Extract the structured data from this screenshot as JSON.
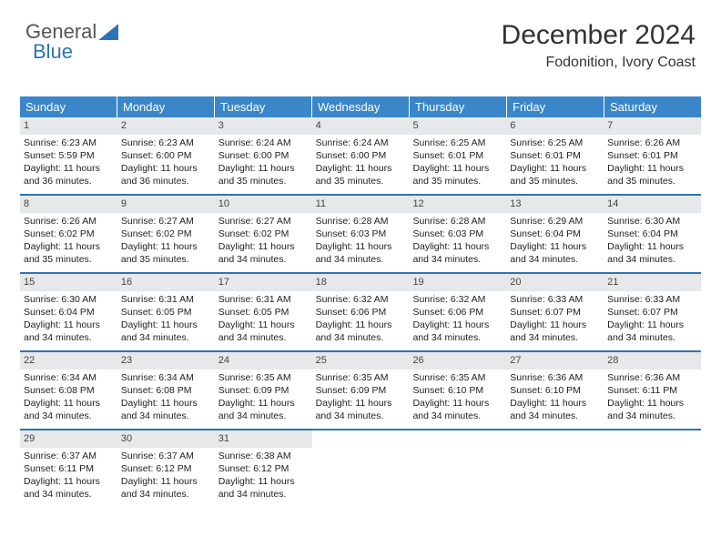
{
  "logo": {
    "word1": "General",
    "word2": "Blue"
  },
  "title": "December 2024",
  "location": "Fodonition, Ivory Coast",
  "colors": {
    "header_bg": "#3a86c8",
    "header_text": "#ffffff",
    "week_divider": "#2d74b5",
    "daynum_bg": "#e7e8e9",
    "body_text": "#222222",
    "title_text": "#333333",
    "logo_gray": "#555555",
    "logo_blue": "#2d74b5"
  },
  "day_names": [
    "Sunday",
    "Monday",
    "Tuesday",
    "Wednesday",
    "Thursday",
    "Friday",
    "Saturday"
  ],
  "weeks": [
    [
      {
        "n": "1",
        "sr": "Sunrise: 6:23 AM",
        "ss": "Sunset: 5:59 PM",
        "d1": "Daylight: 11 hours",
        "d2": "and 36 minutes."
      },
      {
        "n": "2",
        "sr": "Sunrise: 6:23 AM",
        "ss": "Sunset: 6:00 PM",
        "d1": "Daylight: 11 hours",
        "d2": "and 36 minutes."
      },
      {
        "n": "3",
        "sr": "Sunrise: 6:24 AM",
        "ss": "Sunset: 6:00 PM",
        "d1": "Daylight: 11 hours",
        "d2": "and 35 minutes."
      },
      {
        "n": "4",
        "sr": "Sunrise: 6:24 AM",
        "ss": "Sunset: 6:00 PM",
        "d1": "Daylight: 11 hours",
        "d2": "and 35 minutes."
      },
      {
        "n": "5",
        "sr": "Sunrise: 6:25 AM",
        "ss": "Sunset: 6:01 PM",
        "d1": "Daylight: 11 hours",
        "d2": "and 35 minutes."
      },
      {
        "n": "6",
        "sr": "Sunrise: 6:25 AM",
        "ss": "Sunset: 6:01 PM",
        "d1": "Daylight: 11 hours",
        "d2": "and 35 minutes."
      },
      {
        "n": "7",
        "sr": "Sunrise: 6:26 AM",
        "ss": "Sunset: 6:01 PM",
        "d1": "Daylight: 11 hours",
        "d2": "and 35 minutes."
      }
    ],
    [
      {
        "n": "8",
        "sr": "Sunrise: 6:26 AM",
        "ss": "Sunset: 6:02 PM",
        "d1": "Daylight: 11 hours",
        "d2": "and 35 minutes."
      },
      {
        "n": "9",
        "sr": "Sunrise: 6:27 AM",
        "ss": "Sunset: 6:02 PM",
        "d1": "Daylight: 11 hours",
        "d2": "and 35 minutes."
      },
      {
        "n": "10",
        "sr": "Sunrise: 6:27 AM",
        "ss": "Sunset: 6:02 PM",
        "d1": "Daylight: 11 hours",
        "d2": "and 34 minutes."
      },
      {
        "n": "11",
        "sr": "Sunrise: 6:28 AM",
        "ss": "Sunset: 6:03 PM",
        "d1": "Daylight: 11 hours",
        "d2": "and 34 minutes."
      },
      {
        "n": "12",
        "sr": "Sunrise: 6:28 AM",
        "ss": "Sunset: 6:03 PM",
        "d1": "Daylight: 11 hours",
        "d2": "and 34 minutes."
      },
      {
        "n": "13",
        "sr": "Sunrise: 6:29 AM",
        "ss": "Sunset: 6:04 PM",
        "d1": "Daylight: 11 hours",
        "d2": "and 34 minutes."
      },
      {
        "n": "14",
        "sr": "Sunrise: 6:30 AM",
        "ss": "Sunset: 6:04 PM",
        "d1": "Daylight: 11 hours",
        "d2": "and 34 minutes."
      }
    ],
    [
      {
        "n": "15",
        "sr": "Sunrise: 6:30 AM",
        "ss": "Sunset: 6:04 PM",
        "d1": "Daylight: 11 hours",
        "d2": "and 34 minutes."
      },
      {
        "n": "16",
        "sr": "Sunrise: 6:31 AM",
        "ss": "Sunset: 6:05 PM",
        "d1": "Daylight: 11 hours",
        "d2": "and 34 minutes."
      },
      {
        "n": "17",
        "sr": "Sunrise: 6:31 AM",
        "ss": "Sunset: 6:05 PM",
        "d1": "Daylight: 11 hours",
        "d2": "and 34 minutes."
      },
      {
        "n": "18",
        "sr": "Sunrise: 6:32 AM",
        "ss": "Sunset: 6:06 PM",
        "d1": "Daylight: 11 hours",
        "d2": "and 34 minutes."
      },
      {
        "n": "19",
        "sr": "Sunrise: 6:32 AM",
        "ss": "Sunset: 6:06 PM",
        "d1": "Daylight: 11 hours",
        "d2": "and 34 minutes."
      },
      {
        "n": "20",
        "sr": "Sunrise: 6:33 AM",
        "ss": "Sunset: 6:07 PM",
        "d1": "Daylight: 11 hours",
        "d2": "and 34 minutes."
      },
      {
        "n": "21",
        "sr": "Sunrise: 6:33 AM",
        "ss": "Sunset: 6:07 PM",
        "d1": "Daylight: 11 hours",
        "d2": "and 34 minutes."
      }
    ],
    [
      {
        "n": "22",
        "sr": "Sunrise: 6:34 AM",
        "ss": "Sunset: 6:08 PM",
        "d1": "Daylight: 11 hours",
        "d2": "and 34 minutes."
      },
      {
        "n": "23",
        "sr": "Sunrise: 6:34 AM",
        "ss": "Sunset: 6:08 PM",
        "d1": "Daylight: 11 hours",
        "d2": "and 34 minutes."
      },
      {
        "n": "24",
        "sr": "Sunrise: 6:35 AM",
        "ss": "Sunset: 6:09 PM",
        "d1": "Daylight: 11 hours",
        "d2": "and 34 minutes."
      },
      {
        "n": "25",
        "sr": "Sunrise: 6:35 AM",
        "ss": "Sunset: 6:09 PM",
        "d1": "Daylight: 11 hours",
        "d2": "and 34 minutes."
      },
      {
        "n": "26",
        "sr": "Sunrise: 6:35 AM",
        "ss": "Sunset: 6:10 PM",
        "d1": "Daylight: 11 hours",
        "d2": "and 34 minutes."
      },
      {
        "n": "27",
        "sr": "Sunrise: 6:36 AM",
        "ss": "Sunset: 6:10 PM",
        "d1": "Daylight: 11 hours",
        "d2": "and 34 minutes."
      },
      {
        "n": "28",
        "sr": "Sunrise: 6:36 AM",
        "ss": "Sunset: 6:11 PM",
        "d1": "Daylight: 11 hours",
        "d2": "and 34 minutes."
      }
    ],
    [
      {
        "n": "29",
        "sr": "Sunrise: 6:37 AM",
        "ss": "Sunset: 6:11 PM",
        "d1": "Daylight: 11 hours",
        "d2": "and 34 minutes."
      },
      {
        "n": "30",
        "sr": "Sunrise: 6:37 AM",
        "ss": "Sunset: 6:12 PM",
        "d1": "Daylight: 11 hours",
        "d2": "and 34 minutes."
      },
      {
        "n": "31",
        "sr": "Sunrise: 6:38 AM",
        "ss": "Sunset: 6:12 PM",
        "d1": "Daylight: 11 hours",
        "d2": "and 34 minutes."
      },
      null,
      null,
      null,
      null
    ]
  ]
}
